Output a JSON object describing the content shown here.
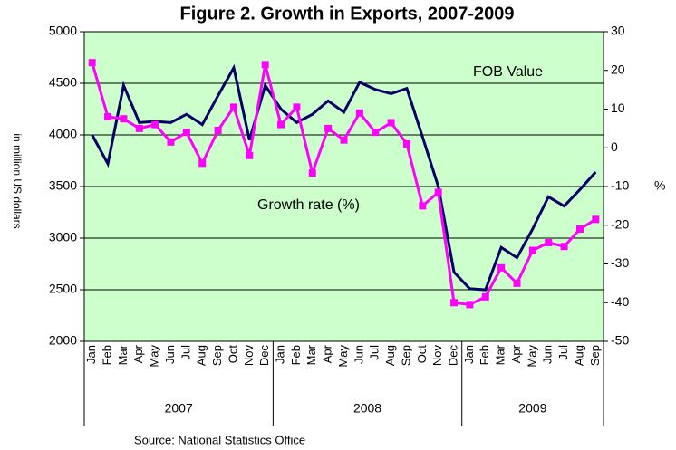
{
  "chart_data": {
    "type": "line",
    "title": "Figure 2. Growth in Exports, 2007-2009",
    "y_label": "in million US dollars",
    "y2_label": "%",
    "source": "Source: National Statistics Office",
    "categories": [
      "Jan",
      "Feb",
      "Mar",
      "Apr",
      "May",
      "Jun",
      "Jul",
      "Aug",
      "Sep",
      "Oct",
      "Nov",
      "Dec",
      "Jan",
      "Feb",
      "Mar",
      "Apr",
      "May",
      "Jun",
      "Jul",
      "Aug",
      "Sep",
      "Oct",
      "Nov",
      "Dec",
      "Jan",
      "Feb",
      "Mar",
      "Apr",
      "May",
      "Jun",
      "Jul",
      "Aug",
      "Sep"
    ],
    "years": [
      "2007",
      "2008",
      "2009"
    ],
    "series": [
      {
        "name": "FOB Value",
        "color": "#000066",
        "axis": "y",
        "values": [
          4000,
          3720,
          4480,
          4120,
          4130,
          4120,
          4200,
          4100,
          4380,
          4650,
          3950,
          4480,
          4250,
          4120,
          4200,
          4330,
          4220,
          4510,
          4440,
          4400,
          4450,
          3980,
          3500,
          2670,
          2510,
          2500,
          2910,
          2810,
          3090,
          3400,
          3310,
          3470,
          3640
        ]
      },
      {
        "name": "Growth rate (%)",
        "color": "#ff00ff",
        "axis": "y2",
        "values": [
          22,
          8,
          7.5,
          5,
          6,
          1.5,
          4,
          -4,
          4.5,
          10.5,
          -2,
          21.5,
          6,
          10.5,
          -6.5,
          5,
          2,
          9,
          4,
          6.5,
          1,
          -15,
          -11.5,
          -40,
          -40.5,
          -38.5,
          -31,
          -35,
          -26.5,
          -24.5,
          -25.5,
          -21,
          -18.5
        ]
      }
    ],
    "ylim": [
      2000,
      5000
    ],
    "yticks": [
      2000,
      2500,
      3000,
      3500,
      4000,
      4500,
      5000
    ],
    "y2lim": [
      -50,
      30
    ],
    "y2ticks": [
      -50,
      -40,
      -30,
      -20,
      -10,
      0,
      10,
      20,
      30
    ],
    "grid": true,
    "plot_background": "#ccffcc"
  }
}
